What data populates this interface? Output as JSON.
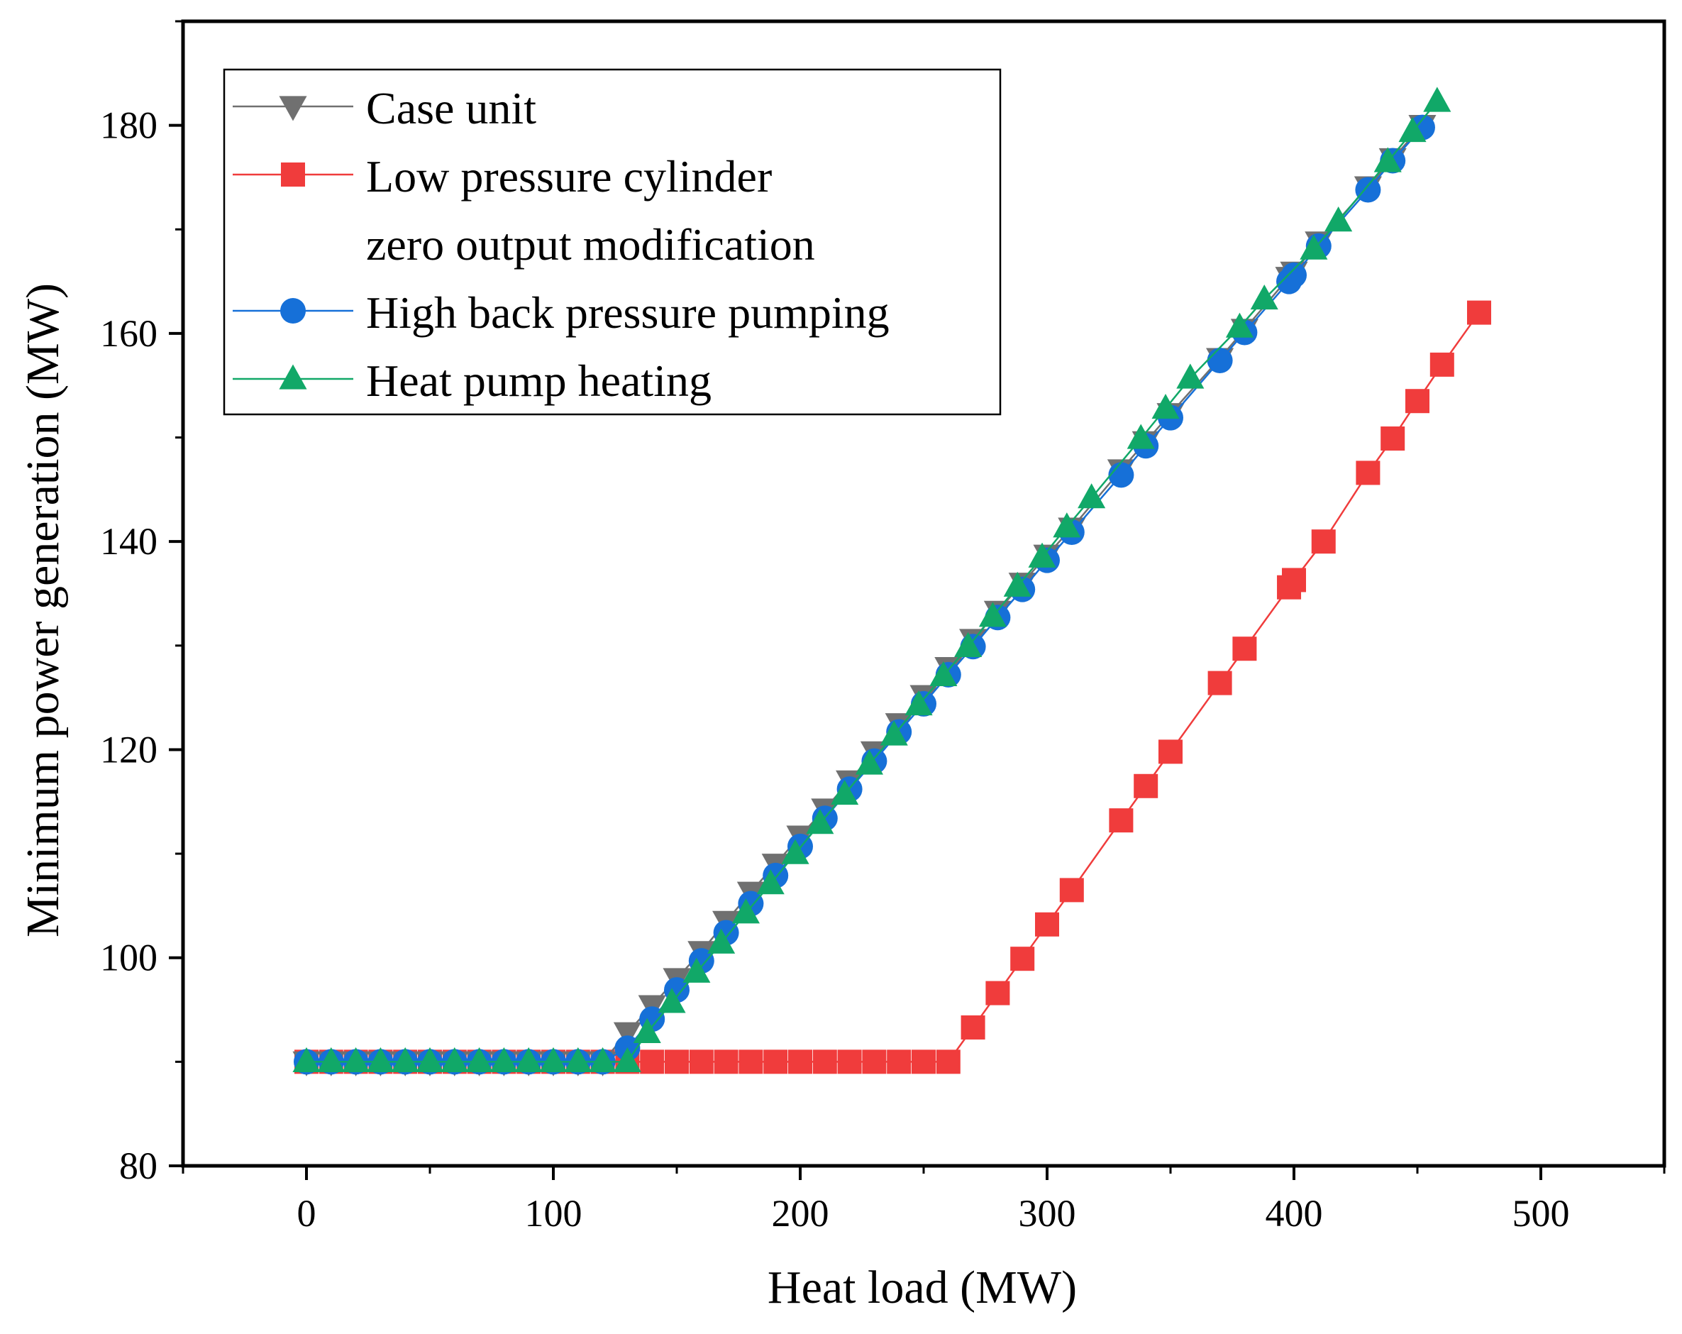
{
  "chart_data": {
    "type": "line",
    "title": "",
    "xlabel": "Heat load (MW)",
    "ylabel": "Minimum power generation (MW)",
    "xlim": [
      -50,
      550
    ],
    "ylim": [
      80,
      190
    ],
    "xticks": [
      0,
      100,
      200,
      300,
      400,
      500
    ],
    "yticks": [
      80,
      100,
      120,
      140,
      160,
      180
    ],
    "grid": false,
    "legend_position": "top-left",
    "series": [
      {
        "name": "Case unit",
        "color": "#707070",
        "marker": "triangle-down",
        "x": [
          0,
          10,
          20,
          30,
          40,
          50,
          60,
          70,
          80,
          90,
          100,
          110,
          120,
          130,
          140,
          150,
          160,
          170,
          180,
          190,
          200,
          210,
          220,
          230,
          240,
          250,
          260,
          270,
          280,
          290,
          300,
          310,
          330,
          340,
          350,
          370,
          380,
          398,
          400,
          410,
          430,
          440,
          452
        ],
        "y": [
          90,
          90,
          90,
          90,
          90,
          90,
          90,
          90,
          90,
          90,
          90,
          90,
          90,
          92.8,
          95.4,
          98,
          100.6,
          103.5,
          106.3,
          109,
          111.7,
          114.3,
          117,
          119.8,
          122.5,
          125.2,
          127.9,
          130.6,
          133.3,
          136,
          138.7,
          141.3,
          146.9,
          149.6,
          152.3,
          157.6,
          160.4,
          165.4,
          165.9,
          168.8,
          174.1,
          176.8,
          180
        ]
      },
      {
        "name": "Low pressure cylinder zero output modification",
        "color": "#f03c3c",
        "marker": "square",
        "x": [
          0,
          10,
          20,
          30,
          40,
          50,
          60,
          70,
          80,
          90,
          100,
          110,
          120,
          130,
          140,
          150,
          160,
          170,
          180,
          190,
          200,
          210,
          220,
          230,
          240,
          250,
          260,
          270,
          280,
          290,
          300,
          310,
          330,
          340,
          350,
          370,
          380,
          398,
          400,
          412,
          430,
          440,
          450,
          460,
          475
        ],
        "y": [
          90,
          90,
          90,
          90,
          90,
          90,
          90,
          90,
          90,
          90,
          90,
          90,
          90,
          90,
          90,
          90,
          90,
          90,
          90,
          90,
          90,
          90,
          90,
          90,
          90,
          90,
          90,
          93.3,
          96.6,
          99.9,
          103.2,
          106.5,
          113.2,
          116.5,
          119.8,
          126.4,
          129.7,
          135.6,
          136.3,
          140,
          146.6,
          149.9,
          153.5,
          157,
          162
        ]
      },
      {
        "name": "High back pressure pumping",
        "color": "#1670d8",
        "marker": "circle",
        "x": [
          0,
          10,
          20,
          30,
          40,
          50,
          60,
          70,
          80,
          90,
          100,
          110,
          120,
          130,
          140,
          150,
          160,
          170,
          180,
          190,
          200,
          210,
          220,
          230,
          240,
          250,
          260,
          270,
          280,
          290,
          300,
          310,
          330,
          340,
          350,
          370,
          380,
          398,
          400,
          410,
          430,
          440,
          452
        ],
        "y": [
          90,
          90,
          90,
          90,
          90,
          90,
          90,
          90,
          90,
          90,
          90,
          90,
          90,
          91.3,
          94.1,
          96.9,
          99.7,
          102.4,
          105.2,
          107.9,
          110.7,
          113.4,
          116.2,
          118.9,
          121.7,
          124.4,
          127.2,
          129.9,
          132.7,
          135.4,
          138.2,
          140.9,
          146.4,
          149.2,
          151.9,
          157.4,
          160.1,
          165,
          165.6,
          168.4,
          173.8,
          176.6,
          179.8
        ]
      },
      {
        "name": "Heat pump heating",
        "color": "#11a868",
        "marker": "triangle-up",
        "x": [
          0,
          10,
          20,
          30,
          40,
          50,
          60,
          70,
          80,
          90,
          100,
          110,
          120,
          130,
          138,
          148,
          158,
          168,
          178,
          188,
          198,
          208,
          218,
          228,
          238,
          248,
          258,
          268,
          278,
          288,
          298,
          308,
          318,
          338,
          348,
          358,
          378,
          388,
          408,
          418,
          438,
          448,
          458
        ],
        "y": [
          90,
          90,
          90,
          90,
          90,
          90,
          90,
          90,
          90,
          90,
          90,
          90,
          90,
          90,
          92.8,
          95.7,
          98.6,
          101.4,
          104.3,
          107.1,
          110,
          112.9,
          115.7,
          118.6,
          121.4,
          124.3,
          127.1,
          129.9,
          132.8,
          135.7,
          138.5,
          141.4,
          144.2,
          149.9,
          152.8,
          155.7,
          160.6,
          163.3,
          168.1,
          170.8,
          176.5,
          179.4,
          182.3
        ]
      }
    ],
    "legend": [
      {
        "label": "Case unit"
      },
      {
        "label": "Low pressure cylinder",
        "label2": "zero output modification"
      },
      {
        "label": "High back pressure pumping"
      },
      {
        "label": "Heat pump heating"
      }
    ]
  }
}
